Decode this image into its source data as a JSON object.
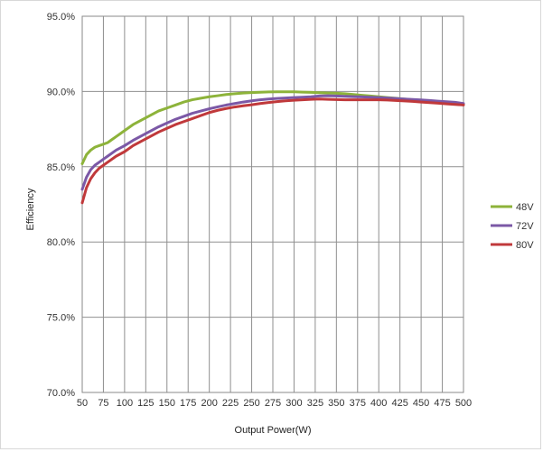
{
  "chart_data": {
    "type": "line",
    "title": "",
    "xlabel": "Output Power(W)",
    "ylabel": "Efficiency",
    "xlim": [
      50,
      500
    ],
    "ylim": [
      70,
      95
    ],
    "x_ticks": [
      50,
      75,
      100,
      125,
      150,
      175,
      200,
      225,
      250,
      275,
      300,
      325,
      350,
      375,
      400,
      425,
      450,
      475,
      500
    ],
    "x_tick_labels": [
      "50",
      "75",
      "100",
      "125",
      "150",
      "175",
      "200",
      "225",
      "250",
      "275",
      "300",
      "325",
      "350",
      "375",
      "400",
      "425",
      "450",
      "475",
      "500"
    ],
    "y_ticks": [
      70,
      75,
      80,
      85,
      90,
      95
    ],
    "y_tick_labels": [
      "70.0%",
      "75.0%",
      "80.0%",
      "85.0%",
      "90.0%",
      "95.0%"
    ],
    "grid": true,
    "legend_position": "right",
    "series": [
      {
        "name": "48V",
        "color": "#8DB33A",
        "x": [
          50,
          55,
          60,
          65,
          70,
          75,
          80,
          85,
          90,
          95,
          100,
          110,
          120,
          130,
          140,
          150,
          160,
          170,
          180,
          190,
          200,
          210,
          220,
          230,
          240,
          250,
          260,
          270,
          280,
          290,
          300,
          310,
          320,
          330,
          340,
          350,
          360,
          370,
          380,
          390,
          400,
          410,
          420,
          430,
          440,
          450,
          460,
          470,
          480,
          490,
          500
        ],
        "values": [
          85.2,
          85.8,
          86.1,
          86.3,
          86.4,
          86.5,
          86.6,
          86.8,
          87.0,
          87.2,
          87.4,
          87.8,
          88.1,
          88.4,
          88.7,
          88.9,
          89.1,
          89.3,
          89.45,
          89.55,
          89.65,
          89.72,
          89.8,
          89.85,
          89.9,
          89.93,
          89.95,
          89.97,
          89.98,
          89.98,
          89.98,
          89.96,
          89.94,
          89.92,
          89.9,
          89.88,
          89.85,
          89.8,
          89.75,
          89.7,
          89.65,
          89.6,
          89.55,
          89.5,
          89.45,
          89.4,
          89.35,
          89.3,
          89.25,
          89.2,
          89.15
        ]
      },
      {
        "name": "72V",
        "color": "#7B58A6",
        "x": [
          50,
          55,
          60,
          65,
          70,
          75,
          80,
          90,
          100,
          110,
          120,
          130,
          140,
          150,
          160,
          170,
          180,
          190,
          200,
          210,
          220,
          230,
          240,
          250,
          260,
          270,
          280,
          290,
          300,
          310,
          320,
          330,
          340,
          350,
          360,
          370,
          380,
          390,
          400,
          410,
          420,
          430,
          440,
          450,
          460,
          470,
          480,
          490,
          500
        ],
        "values": [
          83.5,
          84.3,
          84.8,
          85.1,
          85.3,
          85.5,
          85.7,
          86.1,
          86.4,
          86.75,
          87.05,
          87.35,
          87.65,
          87.9,
          88.15,
          88.35,
          88.55,
          88.7,
          88.85,
          88.98,
          89.1,
          89.2,
          89.3,
          89.38,
          89.45,
          89.5,
          89.54,
          89.57,
          89.6,
          89.62,
          89.65,
          89.7,
          89.72,
          89.7,
          89.68,
          89.66,
          89.64,
          89.62,
          89.6,
          89.57,
          89.54,
          89.5,
          89.47,
          89.44,
          89.4,
          89.36,
          89.32,
          89.28,
          89.2
        ]
      },
      {
        "name": "80V",
        "color": "#C0393B",
        "x": [
          50,
          55,
          60,
          65,
          70,
          75,
          80,
          90,
          100,
          110,
          120,
          130,
          140,
          150,
          160,
          170,
          180,
          190,
          200,
          210,
          220,
          230,
          240,
          250,
          260,
          270,
          280,
          290,
          300,
          310,
          320,
          330,
          340,
          350,
          360,
          370,
          380,
          390,
          400,
          410,
          420,
          430,
          440,
          450,
          460,
          470,
          480,
          490,
          500
        ],
        "values": [
          82.6,
          83.6,
          84.2,
          84.6,
          84.9,
          85.1,
          85.3,
          85.7,
          86.0,
          86.4,
          86.7,
          87.0,
          87.3,
          87.55,
          87.8,
          88.0,
          88.2,
          88.4,
          88.6,
          88.75,
          88.87,
          88.97,
          89.05,
          89.12,
          89.2,
          89.27,
          89.33,
          89.38,
          89.42,
          89.45,
          89.48,
          89.5,
          89.48,
          89.46,
          89.45,
          89.45,
          89.45,
          89.45,
          89.45,
          89.43,
          89.4,
          89.37,
          89.34,
          89.3,
          89.26,
          89.22,
          89.18,
          89.14,
          89.1
        ]
      }
    ]
  }
}
